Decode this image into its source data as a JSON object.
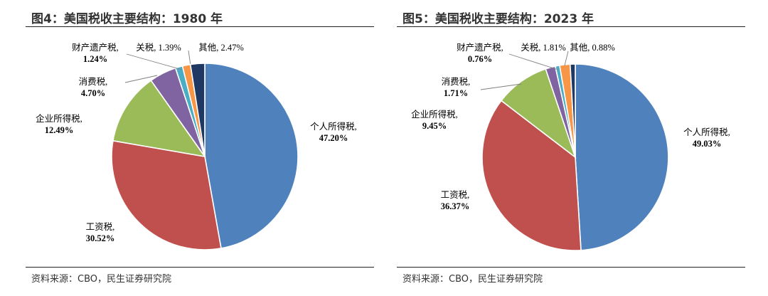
{
  "chart_data": [
    {
      "type": "pie",
      "title": "图4：美国税收主要结构：1980 年",
      "source": "资料来源：CBO，民生证券研究院",
      "slices": [
        {
          "name": "个人所得税",
          "value": 47.2,
          "label": "个人所得税,",
          "pct": "47.20%",
          "color": "#4f81bd"
        },
        {
          "name": "工资税",
          "value": 30.52,
          "label": "工资税,",
          "pct": "30.52%",
          "color": "#c0504d"
        },
        {
          "name": "企业所得税",
          "value": 12.49,
          "label": "企业所得税,",
          "pct": "12.49%",
          "color": "#9bbb59"
        },
        {
          "name": "消费税",
          "value": 4.7,
          "label": "消费税,",
          "pct": "4.70%",
          "color": "#8064a2"
        },
        {
          "name": "财产遗产税",
          "value": 1.24,
          "label": "财产遗产税,",
          "pct": "1.24%",
          "color": "#4bacc6"
        },
        {
          "name": "关税",
          "value": 1.39,
          "label": "关税,",
          "pct": "1.39%",
          "color": "#f79646"
        },
        {
          "name": "其他",
          "value": 2.47,
          "label": "其他,",
          "pct": "2.47%",
          "color": "#1f3864"
        }
      ]
    },
    {
      "type": "pie",
      "title": "图5：美国税收主要结构：2023 年",
      "source": "资料来源：CBO，民生证券研究院",
      "slices": [
        {
          "name": "个人所得税",
          "value": 49.03,
          "label": "个人所得税,",
          "pct": "49.03%",
          "color": "#4f81bd"
        },
        {
          "name": "工资税",
          "value": 36.37,
          "label": "工资税,",
          "pct": "36.37%",
          "color": "#c0504d"
        },
        {
          "name": "企业所得税",
          "value": 9.45,
          "label": "企业所得税,",
          "pct": "9.45%",
          "color": "#9bbb59"
        },
        {
          "name": "消费税",
          "value": 1.71,
          "label": "消费税,",
          "pct": "1.71%",
          "color": "#8064a2"
        },
        {
          "name": "财产遗产税",
          "value": 0.76,
          "label": "财产遗产税,",
          "pct": "0.76%",
          "color": "#4bacc6"
        },
        {
          "name": "关税",
          "value": 1.81,
          "label": "关税,",
          "pct": "1.81%",
          "color": "#f79646"
        },
        {
          "name": "其他",
          "value": 0.88,
          "label": "其他,",
          "pct": "0.88%",
          "color": "#1f3864"
        }
      ]
    }
  ]
}
